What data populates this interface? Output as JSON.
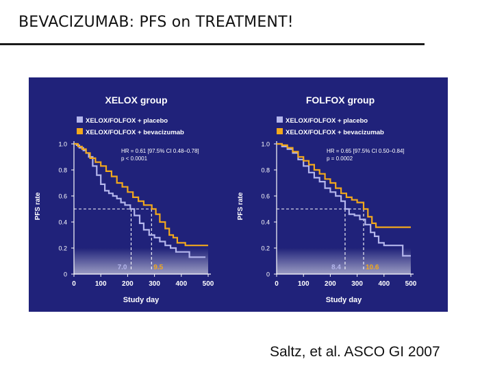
{
  "slide": {
    "title": "BEVACIZUMAB: PFS on TREATMENT!",
    "citation": "Saltz, et al. ASCO GI 2007"
  },
  "colors": {
    "panel_background": "#20227a",
    "placebo": "#b4b6ec",
    "bevacizumab": "#f2a81c",
    "text": "#ffffff",
    "reference_lines": "#ffffff"
  },
  "chart_data": [
    {
      "type": "line",
      "title": "XELOX group",
      "xlabel": "Study day",
      "ylabel": "PFS rate",
      "xlim": [
        0,
        500
      ],
      "ylim": [
        0,
        1.0
      ],
      "xticks": [
        "0",
        "100",
        "200",
        "300",
        "400",
        "500"
      ],
      "yticks": [
        "0",
        "0.2",
        "0.4",
        "0.6",
        "0.8",
        "1.0"
      ],
      "legend": [
        "XELOX/FOLFOX + placebo",
        "XELOX/FOLFOX + bevacizumab"
      ],
      "legend_position": "top-left",
      "stats": [
        "HR = 0.61 [97.5% CI 0.48–0.78]",
        "p < 0.0001"
      ],
      "median_line_y": 0.5,
      "medians": [
        {
          "label": "7.0",
          "x": 213,
          "series": "placebo"
        },
        {
          "label": "9.5",
          "x": 289,
          "series": "bevacizumab"
        }
      ],
      "series": [
        {
          "name": "XELOX/FOLFOX + placebo",
          "points": [
            [
              0,
              1.0
            ],
            [
              10,
              0.99
            ],
            [
              20,
              0.97
            ],
            [
              35,
              0.95
            ],
            [
              45,
              0.93
            ],
            [
              55,
              0.9
            ],
            [
              70,
              0.83
            ],
            [
              85,
              0.76
            ],
            [
              100,
              0.69
            ],
            [
              115,
              0.64
            ],
            [
              130,
              0.62
            ],
            [
              145,
              0.6
            ],
            [
              160,
              0.58
            ],
            [
              175,
              0.55
            ],
            [
              190,
              0.53
            ],
            [
              210,
              0.5
            ],
            [
              225,
              0.45
            ],
            [
              245,
              0.39
            ],
            [
              260,
              0.34
            ],
            [
              280,
              0.3
            ],
            [
              300,
              0.28
            ],
            [
              320,
              0.25
            ],
            [
              340,
              0.22
            ],
            [
              360,
              0.2
            ],
            [
              380,
              0.17
            ],
            [
              420,
              0.17
            ],
            [
              430,
              0.13
            ],
            [
              490,
              0.13
            ]
          ]
        },
        {
          "name": "XELOX/FOLFOX + bevacizumab",
          "points": [
            [
              0,
              1.0
            ],
            [
              15,
              0.98
            ],
            [
              30,
              0.96
            ],
            [
              45,
              0.93
            ],
            [
              60,
              0.89
            ],
            [
              80,
              0.86
            ],
            [
              100,
              0.83
            ],
            [
              120,
              0.79
            ],
            [
              140,
              0.75
            ],
            [
              160,
              0.7
            ],
            [
              180,
              0.67
            ],
            [
              200,
              0.63
            ],
            [
              220,
              0.59
            ],
            [
              240,
              0.56
            ],
            [
              260,
              0.53
            ],
            [
              290,
              0.5
            ],
            [
              305,
              0.46
            ],
            [
              320,
              0.4
            ],
            [
              340,
              0.35
            ],
            [
              355,
              0.3
            ],
            [
              370,
              0.28
            ],
            [
              385,
              0.24
            ],
            [
              400,
              0.24
            ],
            [
              410,
              0.24
            ],
            [
              415,
              0.22
            ],
            [
              500,
              0.22
            ]
          ]
        }
      ]
    },
    {
      "type": "line",
      "title": "FOLFOX group",
      "xlabel": "Study day",
      "ylabel": "PFS rate",
      "xlim": [
        0,
        500
      ],
      "ylim": [
        0,
        1.0
      ],
      "xticks": [
        "0",
        "100",
        "200",
        "300",
        "400",
        "500"
      ],
      "yticks": [
        "0",
        "0.2",
        "0.4",
        "0.6",
        "0.8",
        "1.0"
      ],
      "legend": [
        "XELOX/FOLFOX + placebo",
        "XELOX/FOLFOX + bevacizumab"
      ],
      "legend_position": "top-left",
      "stats": [
        "HR = 0.65 [97.5% CI 0.50–0.84]",
        "p = 0.0002"
      ],
      "median_line_y": 0.5,
      "medians": [
        {
          "label": "8.4",
          "x": 255,
          "series": "placebo"
        },
        {
          "label": "10.6",
          "x": 324,
          "series": "bevacizumab"
        }
      ],
      "series": [
        {
          "name": "XELOX/FOLFOX + placebo",
          "points": [
            [
              0,
              1.0
            ],
            [
              20,
              0.98
            ],
            [
              40,
              0.96
            ],
            [
              60,
              0.93
            ],
            [
              80,
              0.88
            ],
            [
              100,
              0.83
            ],
            [
              120,
              0.78
            ],
            [
              140,
              0.74
            ],
            [
              160,
              0.71
            ],
            [
              180,
              0.66
            ],
            [
              200,
              0.63
            ],
            [
              220,
              0.6
            ],
            [
              240,
              0.56
            ],
            [
              255,
              0.5
            ],
            [
              270,
              0.46
            ],
            [
              290,
              0.45
            ],
            [
              310,
              0.42
            ],
            [
              330,
              0.38
            ],
            [
              350,
              0.32
            ],
            [
              365,
              0.29
            ],
            [
              380,
              0.24
            ],
            [
              400,
              0.22
            ],
            [
              460,
              0.22
            ],
            [
              470,
              0.14
            ],
            [
              500,
              0.14
            ]
          ]
        },
        {
          "name": "XELOX/FOLFOX + bevacizumab",
          "points": [
            [
              0,
              1.0
            ],
            [
              20,
              0.99
            ],
            [
              40,
              0.97
            ],
            [
              60,
              0.94
            ],
            [
              80,
              0.9
            ],
            [
              100,
              0.87
            ],
            [
              120,
              0.84
            ],
            [
              140,
              0.8
            ],
            [
              160,
              0.77
            ],
            [
              180,
              0.73
            ],
            [
              200,
              0.7
            ],
            [
              220,
              0.66
            ],
            [
              240,
              0.62
            ],
            [
              260,
              0.59
            ],
            [
              280,
              0.57
            ],
            [
              300,
              0.55
            ],
            [
              324,
              0.5
            ],
            [
              340,
              0.44
            ],
            [
              355,
              0.39
            ],
            [
              370,
              0.36
            ],
            [
              390,
              0.36
            ],
            [
              400,
              0.36
            ],
            [
              500,
              0.36
            ]
          ]
        }
      ]
    }
  ]
}
